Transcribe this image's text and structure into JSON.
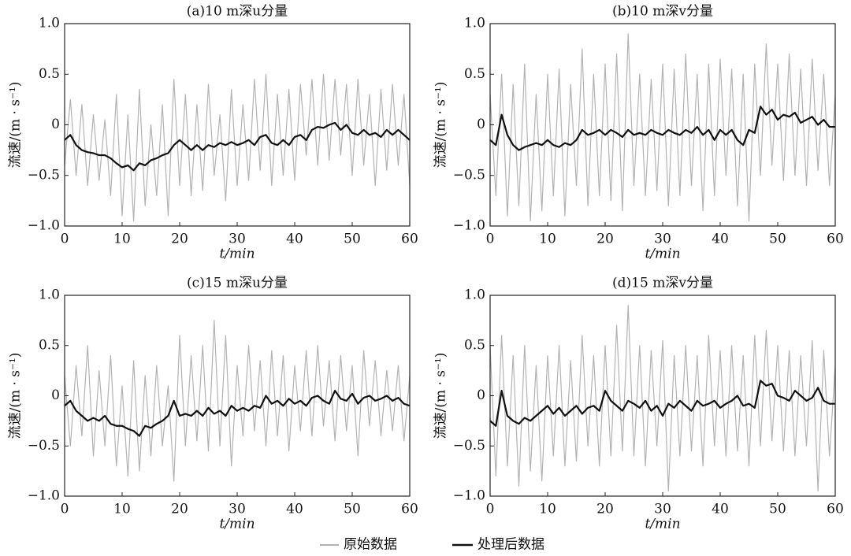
{
  "chart_data": [
    {
      "type": "line",
      "title": "(a)10 m深u分量",
      "xlabel": "t/min",
      "ylabel": "流速/(m · s⁻¹)",
      "xlim": [
        0,
        60
      ],
      "ylim": [
        -1,
        1
      ],
      "xticks": [
        0,
        10,
        20,
        30,
        40,
        50,
        60
      ],
      "yticks": [
        {
          "value": 1,
          "label": "1.0"
        },
        {
          "value": 0.5,
          "label": "0.5"
        },
        0,
        {
          "value": -0.5,
          "label": "−0.5"
        },
        {
          "value": -1,
          "label": "−1.0"
        }
      ],
      "x": [
        0,
        1,
        2,
        3,
        4,
        5,
        6,
        7,
        8,
        9,
        10,
        11,
        12,
        13,
        14,
        15,
        16,
        17,
        18,
        19,
        20,
        21,
        22,
        23,
        24,
        25,
        26,
        27,
        28,
        29,
        30,
        31,
        32,
        33,
        34,
        35,
        36,
        37,
        38,
        39,
        40,
        41,
        42,
        43,
        44,
        45,
        46,
        47,
        48,
        49,
        50,
        51,
        52,
        53,
        54,
        55,
        56,
        57,
        58,
        59,
        60
      ],
      "series": [
        {
          "name": "原始数据",
          "color": "#b3b3b3",
          "values": [
            -0.4,
            0.25,
            -0.5,
            0.2,
            -0.6,
            0.1,
            -0.55,
            0.05,
            -0.7,
            0.3,
            -0.9,
            0.1,
            -0.95,
            0.35,
            -0.8,
            0.0,
            -0.7,
            0.2,
            -0.9,
            0.45,
            -0.6,
            0.3,
            -0.7,
            0.2,
            -0.65,
            0.4,
            -0.5,
            0.1,
            -0.75,
            0.35,
            -0.6,
            0.2,
            -0.55,
            0.45,
            -0.45,
            0.5,
            -0.6,
            0.3,
            -0.5,
            0.35,
            -0.55,
            0.4,
            -0.3,
            0.45,
            -0.4,
            0.5,
            -0.35,
            0.45,
            -0.3,
            0.4,
            -0.5,
            0.45,
            -0.4,
            0.3,
            -0.6,
            0.35,
            -0.45,
            0.4,
            -0.4,
            0.3,
            -0.6
          ]
        },
        {
          "name": "处理后数据",
          "color": "#111111",
          "values": [
            -0.15,
            -0.1,
            -0.2,
            -0.25,
            -0.27,
            -0.28,
            -0.3,
            -0.3,
            -0.33,
            -0.38,
            -0.42,
            -0.4,
            -0.45,
            -0.38,
            -0.4,
            -0.35,
            -0.33,
            -0.3,
            -0.28,
            -0.2,
            -0.15,
            -0.2,
            -0.25,
            -0.2,
            -0.25,
            -0.2,
            -0.22,
            -0.18,
            -0.2,
            -0.17,
            -0.2,
            -0.18,
            -0.15,
            -0.2,
            -0.12,
            -0.1,
            -0.18,
            -0.2,
            -0.15,
            -0.2,
            -0.12,
            -0.1,
            -0.15,
            -0.05,
            -0.02,
            -0.03,
            0,
            0.02,
            -0.05,
            0,
            -0.08,
            -0.1,
            -0.05,
            -0.1,
            -0.08,
            -0.12,
            -0.05,
            -0.1,
            -0.05,
            -0.1,
            -0.15
          ]
        }
      ]
    },
    {
      "type": "line",
      "title": "(b)10 m深v分量",
      "xlabel": "t/min",
      "ylabel": "流速/(m · s⁻¹)",
      "xlim": [
        0,
        60
      ],
      "ylim": [
        -1,
        1
      ],
      "xticks": [
        0,
        10,
        20,
        30,
        40,
        50,
        60
      ],
      "yticks": [
        {
          "value": 1,
          "label": "1.0"
        },
        {
          "value": 0.5,
          "label": "0.5"
        },
        0,
        {
          "value": -0.5,
          "label": "−0.5"
        },
        {
          "value": -1,
          "label": "−1.0"
        }
      ],
      "x": [
        0,
        1,
        2,
        3,
        4,
        5,
        6,
        7,
        8,
        9,
        10,
        11,
        12,
        13,
        14,
        15,
        16,
        17,
        18,
        19,
        20,
        21,
        22,
        23,
        24,
        25,
        26,
        27,
        28,
        29,
        30,
        31,
        32,
        33,
        34,
        35,
        36,
        37,
        38,
        39,
        40,
        41,
        42,
        43,
        44,
        45,
        46,
        47,
        48,
        49,
        50,
        51,
        52,
        53,
        54,
        55,
        56,
        57,
        58,
        59,
        60
      ],
      "series": [
        {
          "name": "原始数据",
          "color": "#b3b3b3",
          "values": [
            0.3,
            -0.7,
            0.5,
            -0.9,
            0.4,
            -0.8,
            0.6,
            -0.95,
            0.3,
            -0.85,
            0.5,
            -0.7,
            0.55,
            -0.9,
            0.4,
            -0.6,
            0.75,
            -0.8,
            0.5,
            -0.7,
            0.6,
            -0.75,
            0.7,
            -0.85,
            0.9,
            -0.6,
            0.5,
            -0.7,
            0.45,
            -0.65,
            0.6,
            -0.8,
            0.55,
            -0.7,
            0.7,
            -0.6,
            0.5,
            -0.85,
            0.6,
            -0.7,
            0.65,
            -0.5,
            0.55,
            -0.8,
            0.5,
            -0.95,
            0.6,
            -0.5,
            0.8,
            -0.4,
            0.6,
            -0.55,
            0.7,
            -0.5,
            0.55,
            -0.6,
            0.65,
            -0.45,
            0.5,
            -0.6,
            0.3
          ]
        },
        {
          "name": "处理后数据",
          "color": "#111111",
          "values": [
            -0.15,
            -0.2,
            0.1,
            -0.1,
            -0.2,
            -0.25,
            -0.22,
            -0.2,
            -0.18,
            -0.2,
            -0.15,
            -0.2,
            -0.22,
            -0.18,
            -0.2,
            -0.15,
            -0.05,
            -0.1,
            -0.08,
            -0.05,
            -0.1,
            -0.05,
            -0.08,
            -0.12,
            -0.05,
            -0.1,
            -0.08,
            -0.1,
            -0.05,
            -0.08,
            -0.1,
            -0.05,
            -0.08,
            -0.1,
            -0.05,
            -0.08,
            -0.02,
            -0.1,
            -0.05,
            -0.15,
            -0.05,
            -0.1,
            -0.05,
            -0.15,
            -0.2,
            -0.05,
            -0.08,
            0.18,
            0.1,
            0.15,
            0.05,
            0.1,
            0.08,
            0.12,
            0.02,
            0.05,
            0.08,
            0.0,
            0.05,
            -0.02,
            -0.02
          ]
        }
      ]
    },
    {
      "type": "line",
      "title": "(c)15 m深u分量",
      "xlabel": "t/min",
      "ylabel": "流速/(m · s⁻¹)",
      "xlim": [
        0,
        60
      ],
      "ylim": [
        -1,
        1
      ],
      "xticks": [
        0,
        10,
        20,
        30,
        40,
        50,
        60
      ],
      "yticks": [
        {
          "value": 1,
          "label": "1.0"
        },
        {
          "value": 0.5,
          "label": "0.5"
        },
        0,
        {
          "value": -0.5,
          "label": "−0.5"
        },
        {
          "value": -1,
          "label": "−1.0"
        }
      ],
      "x": [
        0,
        1,
        2,
        3,
        4,
        5,
        6,
        7,
        8,
        9,
        10,
        11,
        12,
        13,
        14,
        15,
        16,
        17,
        18,
        19,
        20,
        21,
        22,
        23,
        24,
        25,
        26,
        27,
        28,
        29,
        30,
        31,
        32,
        33,
        34,
        35,
        36,
        37,
        38,
        39,
        40,
        41,
        42,
        43,
        44,
        45,
        46,
        47,
        48,
        49,
        50,
        51,
        52,
        53,
        54,
        55,
        56,
        57,
        58,
        59,
        60
      ],
      "series": [
        {
          "name": "原始数据",
          "color": "#b3b3b3",
          "values": [
            0.2,
            -0.5,
            0.3,
            -0.4,
            0.5,
            -0.6,
            0.25,
            -0.5,
            0.4,
            -0.7,
            0.1,
            -0.8,
            0.35,
            -0.75,
            0.2,
            -0.6,
            0.3,
            -0.5,
            0.1,
            -0.85,
            0.6,
            -0.5,
            0.4,
            -0.45,
            0.5,
            -0.55,
            0.75,
            -0.5,
            0.6,
            -0.7,
            0.3,
            -0.4,
            0.5,
            -0.35,
            0.35,
            -0.5,
            0.45,
            -0.4,
            0.4,
            -0.55,
            0.3,
            -0.35,
            0.45,
            -0.4,
            0.5,
            -0.3,
            0.35,
            -0.45,
            0.4,
            -0.35,
            0.3,
            -0.6,
            0.45,
            -0.3,
            0.35,
            -0.4,
            0.25,
            -0.35,
            0.3,
            -0.45,
            0.2
          ]
        },
        {
          "name": "处理后数据",
          "color": "#111111",
          "values": [
            -0.1,
            -0.05,
            -0.15,
            -0.2,
            -0.25,
            -0.22,
            -0.25,
            -0.2,
            -0.28,
            -0.3,
            -0.3,
            -0.33,
            -0.35,
            -0.4,
            -0.3,
            -0.32,
            -0.28,
            -0.25,
            -0.2,
            -0.05,
            -0.2,
            -0.18,
            -0.2,
            -0.15,
            -0.2,
            -0.12,
            -0.18,
            -0.15,
            -0.2,
            -0.1,
            -0.15,
            -0.12,
            -0.15,
            -0.1,
            -0.12,
            0.0,
            -0.08,
            -0.05,
            -0.1,
            -0.03,
            -0.08,
            -0.05,
            -0.1,
            -0.02,
            0.0,
            -0.05,
            -0.08,
            0.05,
            -0.03,
            -0.05,
            0.02,
            -0.08,
            -0.02,
            0.0,
            -0.05,
            -0.03,
            0.0,
            -0.05,
            -0.02,
            -0.08,
            -0.1
          ]
        }
      ]
    },
    {
      "type": "line",
      "title": "(d)15 m深v分量",
      "xlabel": "t/min",
      "ylabel": "流速/(m · s⁻¹)",
      "xlim": [
        0,
        60
      ],
      "ylim": [
        -1,
        1
      ],
      "xticks": [
        0,
        10,
        20,
        30,
        40,
        50,
        60
      ],
      "yticks": [
        {
          "value": 1,
          "label": "1.0"
        },
        {
          "value": 0.5,
          "label": "0.5"
        },
        0,
        {
          "value": -0.5,
          "label": "−0.5"
        },
        {
          "value": -1,
          "label": "−1.0"
        }
      ],
      "x": [
        0,
        1,
        2,
        3,
        4,
        5,
        6,
        7,
        8,
        9,
        10,
        11,
        12,
        13,
        14,
        15,
        16,
        17,
        18,
        19,
        20,
        21,
        22,
        23,
        24,
        25,
        26,
        27,
        28,
        29,
        30,
        31,
        32,
        33,
        34,
        35,
        36,
        37,
        38,
        39,
        40,
        41,
        42,
        43,
        44,
        45,
        46,
        47,
        48,
        49,
        50,
        51,
        52,
        53,
        54,
        55,
        56,
        57,
        58,
        59,
        60
      ],
      "series": [
        {
          "name": "原始数据",
          "color": "#b3b3b3",
          "values": [
            0.5,
            -0.8,
            0.6,
            -0.7,
            0.4,
            -0.9,
            0.5,
            -0.75,
            0.3,
            -0.85,
            0.4,
            -0.6,
            0.5,
            -0.7,
            0.35,
            -0.65,
            0.6,
            -0.5,
            0.4,
            -0.7,
            0.5,
            -0.6,
            0.7,
            -0.55,
            0.9,
            -0.6,
            0.5,
            -0.7,
            0.45,
            -0.5,
            0.55,
            -0.95,
            0.4,
            -0.6,
            0.5,
            -0.55,
            0.4,
            -0.7,
            0.6,
            -0.5,
            0.45,
            -0.6,
            0.5,
            -0.55,
            0.4,
            -0.7,
            0.6,
            -0.5,
            0.65,
            -0.45,
            0.5,
            -0.55,
            0.45,
            -0.6,
            0.4,
            -0.5,
            0.55,
            -0.95,
            0.45,
            -0.6,
            0.3
          ]
        },
        {
          "name": "处理后数据",
          "color": "#111111",
          "values": [
            -0.25,
            -0.3,
            0.05,
            -0.2,
            -0.25,
            -0.28,
            -0.22,
            -0.25,
            -0.2,
            -0.15,
            -0.1,
            -0.18,
            -0.12,
            -0.2,
            -0.15,
            -0.1,
            -0.18,
            -0.12,
            -0.1,
            -0.15,
            0.05,
            -0.05,
            -0.1,
            -0.15,
            -0.05,
            -0.08,
            -0.12,
            -0.05,
            -0.15,
            -0.1,
            -0.2,
            -0.08,
            -0.12,
            -0.05,
            -0.1,
            -0.15,
            -0.05,
            -0.1,
            -0.08,
            -0.05,
            -0.12,
            -0.08,
            -0.05,
            0.0,
            -0.1,
            -0.08,
            -0.12,
            0.15,
            0.1,
            0.12,
            0.0,
            -0.02,
            -0.05,
            0.05,
            0.0,
            -0.05,
            -0.02,
            0.08,
            -0.05,
            -0.08,
            -0.08
          ]
        }
      ]
    }
  ]
}
